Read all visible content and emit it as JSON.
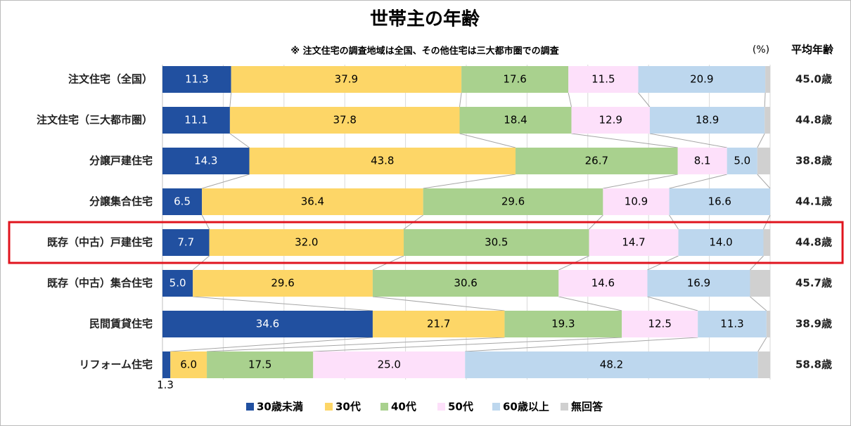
{
  "chart_data": {
    "type": "bar",
    "orientation": "horizontal",
    "stacked": true,
    "title": "世帯主の年齢",
    "subtitle": "※ 注文住宅の調査地域は全国、その他住宅は三大都市圏での調査",
    "unit_label": "(%)",
    "average_header": "平均年齢",
    "categories": [
      "注文住宅（全国）",
      "注文住宅（三大都市圏）",
      "分譲戸建住宅",
      "分譲集合住宅",
      "既存（中古）戸建住宅",
      "既存（中古）集合住宅",
      "民間賃貸住宅",
      "リフォーム住宅"
    ],
    "average_age_labels": [
      "45.0歳",
      "44.8歳",
      "38.8歳",
      "44.1歳",
      "44.8歳",
      "45.7歳",
      "38.9歳",
      "58.8歳"
    ],
    "xlim": [
      0,
      100
    ],
    "xticks": [
      0,
      10,
      20,
      30,
      40,
      50,
      60,
      70,
      80,
      90,
      100
    ],
    "grid": true,
    "legend": "bottom",
    "series": [
      {
        "name": "30歳未満",
        "color": "#2150a0",
        "label_color": "#ffffff",
        "values": [
          11.3,
          11.1,
          14.3,
          6.5,
          7.7,
          5.0,
          34.6,
          1.3
        ],
        "value_labels": [
          "11.3",
          "11.1",
          "14.3",
          "6.5",
          "7.7",
          "5.0",
          "34.6",
          "1.3"
        ]
      },
      {
        "name": "30代",
        "color": "#fdd667",
        "label_color": "#000000",
        "values": [
          37.9,
          37.8,
          43.8,
          36.4,
          32.0,
          29.6,
          21.7,
          6.0
        ],
        "value_labels": [
          "37.9",
          "37.8",
          "43.8",
          "36.4",
          "32.0",
          "29.6",
          "21.7",
          "6.0"
        ]
      },
      {
        "name": "40代",
        "color": "#a9d18e",
        "label_color": "#000000",
        "values": [
          17.6,
          18.4,
          26.7,
          29.6,
          30.5,
          30.6,
          19.3,
          17.5
        ],
        "value_labels": [
          "17.6",
          "18.4",
          "26.7",
          "29.6",
          "30.5",
          "30.6",
          "19.3",
          "17.5"
        ]
      },
      {
        "name": "50代",
        "color": "#fde0fa",
        "label_color": "#000000",
        "values": [
          11.5,
          12.9,
          8.1,
          10.9,
          14.7,
          14.6,
          12.5,
          25.0
        ],
        "value_labels": [
          "11.5",
          "12.9",
          "8.1",
          "10.9",
          "14.7",
          "14.6",
          "12.5",
          "25.0"
        ]
      },
      {
        "name": "60歳以上",
        "color": "#bdd7ee",
        "label_color": "#000000",
        "values": [
          20.9,
          18.9,
          5.0,
          16.6,
          14.0,
          16.9,
          11.3,
          48.2
        ],
        "value_labels": [
          "20.9",
          "18.9",
          "5.0",
          "16.6",
          "14.0",
          "16.9",
          "11.3",
          "48.2"
        ]
      },
      {
        "name": "無回答",
        "color": "#d0d0d0",
        "values": [
          0.8,
          0.9,
          2.1,
          0,
          1.1,
          3.3,
          0.6,
          2.0
        ]
      }
    ]
  }
}
